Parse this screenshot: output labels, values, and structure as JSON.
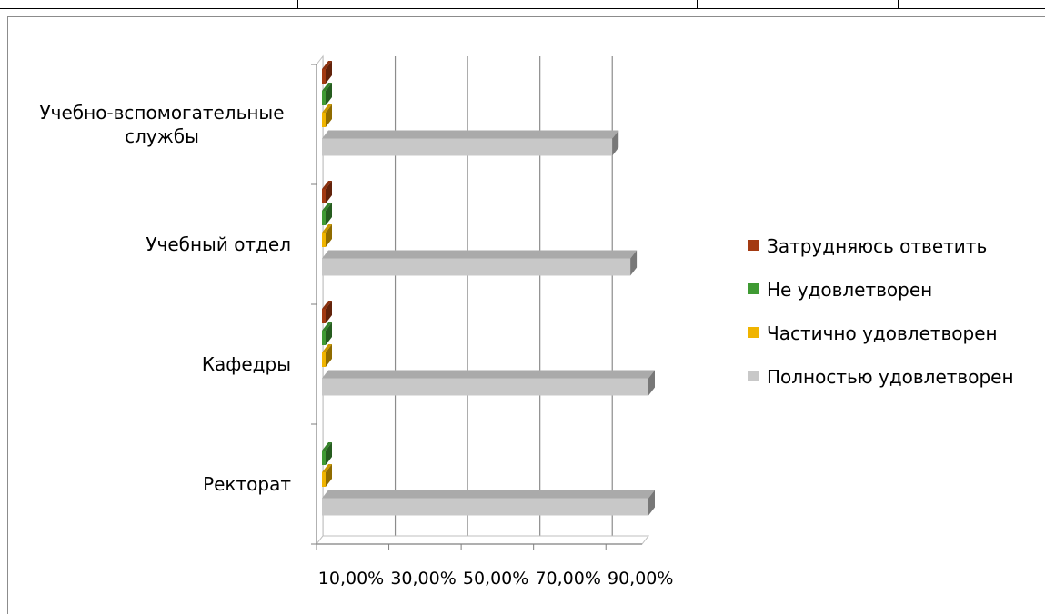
{
  "chart_data": {
    "type": "bar",
    "orientation": "horizontal",
    "three_d": true,
    "categories": [
      "Учебно-вспомогательные службы",
      "Учебный отдел",
      "Кафедры",
      "Ректорат"
    ],
    "category_lines": [
      [
        "Учебно-вспомогательные",
        "службы"
      ],
      [
        "Учебный отдел"
      ],
      [
        "Кафедры"
      ],
      [
        "Ректорат"
      ]
    ],
    "series": [
      {
        "name": "Затрудняюсь ответить",
        "color": "#a33a12",
        "values": [
          0.5,
          0.5,
          0.5,
          0.0
        ]
      },
      {
        "name": "Не удовлетворен",
        "color": "#3f9a33",
        "values": [
          0.5,
          0.5,
          0.5,
          0.5
        ]
      },
      {
        "name": "Частично удовлетворен",
        "color": "#f0b400",
        "values": [
          0.5,
          0.5,
          0.5,
          0.5
        ]
      },
      {
        "name": "Полностью удовлетворен",
        "color": "#c8c8c8",
        "values": [
          90.0,
          95.0,
          100.0,
          100.0
        ]
      }
    ],
    "xlim": [
      10,
      100
    ],
    "x_ticks": [
      10,
      30,
      50,
      70,
      90
    ],
    "x_tick_labels": [
      "10,00%",
      "30,00%",
      "50,00%",
      "70,00%",
      "90,00%"
    ],
    "grid": true,
    "legend": "right"
  }
}
